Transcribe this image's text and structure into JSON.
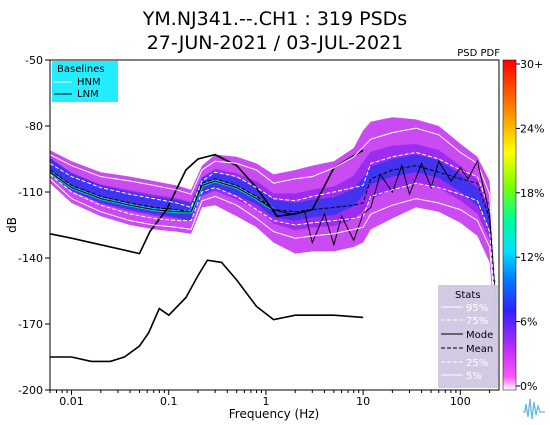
{
  "header": {
    "title_line1": "YM.NJ341.--.CH1 : 319 PSDs",
    "title_line2": "27-JUN-2021 / 03-JUL-2021",
    "pdf_label": "PSD PDF"
  },
  "colors": {
    "baseline_box": "#22eeff",
    "stats_box": "#cfc7e0",
    "pdf_main": "#c22cf0",
    "pdf_core": "#2236ee",
    "pdf_hot": "#18e0d0",
    "colorbar": [
      "#ffffff",
      "#ff44ff",
      "#b020ff",
      "#2020ff",
      "#00a0ff",
      "#00ffff",
      "#00ff60",
      "#c0ff00",
      "#ffff00",
      "#ff8800",
      "#ff0000"
    ]
  },
  "chart_data": {
    "type": "line",
    "title": "YM.NJ341.--.CH1 : 319 PSDs",
    "subtitle": "27-JUN-2021 / 03-JUL-2021",
    "xlabel": "Frequency (Hz)",
    "ylabel": "dB",
    "x_scale": "log",
    "xlim": [
      0.006,
      250
    ],
    "ylim": [
      -200,
      -50
    ],
    "x_ticks": [
      {
        "value": 0.01,
        "label": "0.01"
      },
      {
        "value": 0.1,
        "label": "0.1"
      },
      {
        "value": 1,
        "label": "1"
      },
      {
        "value": 10,
        "label": "10"
      },
      {
        "value": 100,
        "label": "100"
      }
    ],
    "y_ticks": [
      {
        "value": -50,
        "label": "-50"
      },
      {
        "value": -80,
        "label": "-80"
      },
      {
        "value": -110,
        "label": "-110"
      },
      {
        "value": -140,
        "label": "-140"
      },
      {
        "value": -170,
        "label": "-170"
      },
      {
        "value": -200,
        "label": "-200"
      }
    ],
    "colorbar": {
      "label": "PSD PDF",
      "ticks": [
        "30+",
        "24%",
        "18%",
        "12%",
        "6%",
        "0%"
      ]
    },
    "baselines_legend": {
      "title": "Baselines",
      "items": [
        "HNM",
        "LNM"
      ]
    },
    "stats_legend": {
      "title": "Stats",
      "items": [
        "95%",
        "75%",
        "Mode",
        "Mean",
        "25%",
        "5%"
      ]
    },
    "series": [
      {
        "name": "HNM",
        "x": [
          0.006,
          0.01,
          0.02,
          0.05,
          0.064,
          0.095,
          0.15,
          0.2,
          0.3,
          0.5,
          0.8,
          1.3,
          2,
          3,
          5,
          10
        ],
        "y": [
          -129,
          -131,
          -134,
          -138,
          -128,
          -118,
          -100,
          -95,
          -93,
          -98,
          -108,
          -121,
          -120,
          -118,
          -99,
          -91
        ]
      },
      {
        "name": "LNM",
        "x": [
          0.006,
          0.01,
          0.016,
          0.025,
          0.035,
          0.05,
          0.062,
          0.08,
          0.1,
          0.15,
          0.2,
          0.25,
          0.35,
          0.5,
          0.8,
          1.2,
          2,
          3,
          5,
          10
        ],
        "y": [
          -185,
          -185,
          -187,
          -187,
          -185,
          -180,
          -174,
          -163,
          -166,
          -158,
          -148,
          -141,
          -142,
          -150,
          -162,
          -168,
          -166,
          -166,
          -166,
          -167
        ]
      },
      {
        "name": "95%",
        "x": [
          0.006,
          0.01,
          0.02,
          0.04,
          0.07,
          0.12,
          0.17,
          0.22,
          0.3,
          0.5,
          0.8,
          1.2,
          2,
          3,
          5,
          8,
          12,
          20,
          35,
          60,
          100,
          150,
          200,
          230
        ],
        "y": [
          -93,
          -98,
          -103,
          -105,
          -107,
          -109,
          -111,
          -100,
          -96,
          -97,
          -100,
          -106,
          -104,
          -103,
          -99,
          -94,
          -86,
          -83,
          -81,
          -84,
          -92,
          -97,
          -111,
          -150
        ]
      },
      {
        "name": "75%",
        "x": [
          0.006,
          0.01,
          0.02,
          0.04,
          0.07,
          0.12,
          0.17,
          0.22,
          0.3,
          0.5,
          0.8,
          1.2,
          2,
          3,
          5,
          8,
          10,
          12,
          20,
          35,
          60,
          100,
          150,
          200,
          230
        ],
        "y": [
          -97,
          -103,
          -108,
          -111,
          -113,
          -115,
          -117,
          -105,
          -101,
          -103,
          -108,
          -113,
          -114,
          -112,
          -110,
          -108,
          -107,
          -97,
          -94,
          -92,
          -95,
          -100,
          -103,
          -118,
          -155
        ]
      },
      {
        "name": "Mode",
        "x": [
          0.006,
          0.01,
          0.02,
          0.04,
          0.07,
          0.12,
          0.17,
          0.22,
          0.3,
          0.5,
          0.8,
          1.2,
          1.8,
          2.5,
          3,
          4,
          5,
          6,
          8,
          10,
          12,
          15,
          20,
          25,
          30,
          40,
          50,
          60,
          80,
          100,
          120,
          150,
          200,
          230
        ],
        "y": [
          -101,
          -108,
          -113,
          -116,
          -118,
          -119,
          -119,
          -107,
          -105,
          -108,
          -113,
          -118,
          -120,
          -119,
          -133,
          -120,
          -134,
          -121,
          -132,
          -120,
          -117,
          -102,
          -110,
          -98,
          -111,
          -97,
          -108,
          -96,
          -105,
          -99,
          -104,
          -96,
          -120,
          -160
        ]
      },
      {
        "name": "Mean",
        "x": [
          0.006,
          0.01,
          0.02,
          0.04,
          0.07,
          0.12,
          0.17,
          0.22,
          0.3,
          0.5,
          0.8,
          1.2,
          2,
          3,
          5,
          8,
          10,
          12,
          20,
          35,
          60,
          100,
          150,
          200,
          230
        ],
        "y": [
          -100,
          -107,
          -112,
          -115,
          -117,
          -118,
          -119,
          -106,
          -104,
          -107,
          -112,
          -118,
          -119,
          -118,
          -117,
          -116,
          -115,
          -104,
          -100,
          -98,
          -101,
          -104,
          -106,
          -122,
          -158
        ]
      },
      {
        "name": "25%",
        "x": [
          0.006,
          0.01,
          0.02,
          0.04,
          0.07,
          0.12,
          0.17,
          0.22,
          0.3,
          0.5,
          0.8,
          1.2,
          2,
          3,
          5,
          8,
          10,
          12,
          20,
          35,
          60,
          100,
          150,
          200,
          230
        ],
        "y": [
          -102,
          -110,
          -116,
          -120,
          -122,
          -123,
          -123,
          -110,
          -108,
          -112,
          -118,
          -123,
          -125,
          -124,
          -123,
          -122,
          -121,
          -112,
          -109,
          -106,
          -108,
          -111,
          -114,
          -128,
          -162
        ]
      },
      {
        "name": "5%",
        "x": [
          0.006,
          0.01,
          0.02,
          0.04,
          0.07,
          0.12,
          0.17,
          0.22,
          0.3,
          0.5,
          0.8,
          1.2,
          2,
          3,
          5,
          8,
          10,
          12,
          20,
          35,
          60,
          100,
          150,
          200,
          230
        ],
        "y": [
          -104,
          -113,
          -119,
          -123,
          -125,
          -126,
          -127,
          -114,
          -112,
          -116,
          -122,
          -128,
          -131,
          -130,
          -129,
          -127,
          -126,
          -120,
          -116,
          -113,
          -115,
          -118,
          -123,
          -135,
          -166
        ]
      }
    ],
    "pdf_band": {
      "x": [
        0.006,
        0.01,
        0.02,
        0.04,
        0.07,
        0.12,
        0.17,
        0.22,
        0.3,
        0.5,
        0.8,
        1.2,
        2,
        3,
        5,
        8,
        10,
        12,
        20,
        35,
        60,
        100,
        150,
        200,
        230
      ],
      "upper": [
        -91,
        -96,
        -101,
        -103,
        -105,
        -107,
        -109,
        -98,
        -93,
        -94,
        -97,
        -102,
        -100,
        -98,
        -96,
        -90,
        -82,
        -78,
        -76,
        -77,
        -80,
        -88,
        -94,
        -105,
        -148
      ],
      "lower": [
        -106,
        -115,
        -121,
        -125,
        -127,
        -128,
        -129,
        -117,
        -116,
        -121,
        -126,
        -133,
        -138,
        -137,
        -137,
        -135,
        -133,
        -127,
        -122,
        -117,
        -119,
        -124,
        -130,
        -142,
        -172
      ]
    },
    "grid": false,
    "legend_placement": "top-left (Baselines), bottom-right (Stats)"
  }
}
